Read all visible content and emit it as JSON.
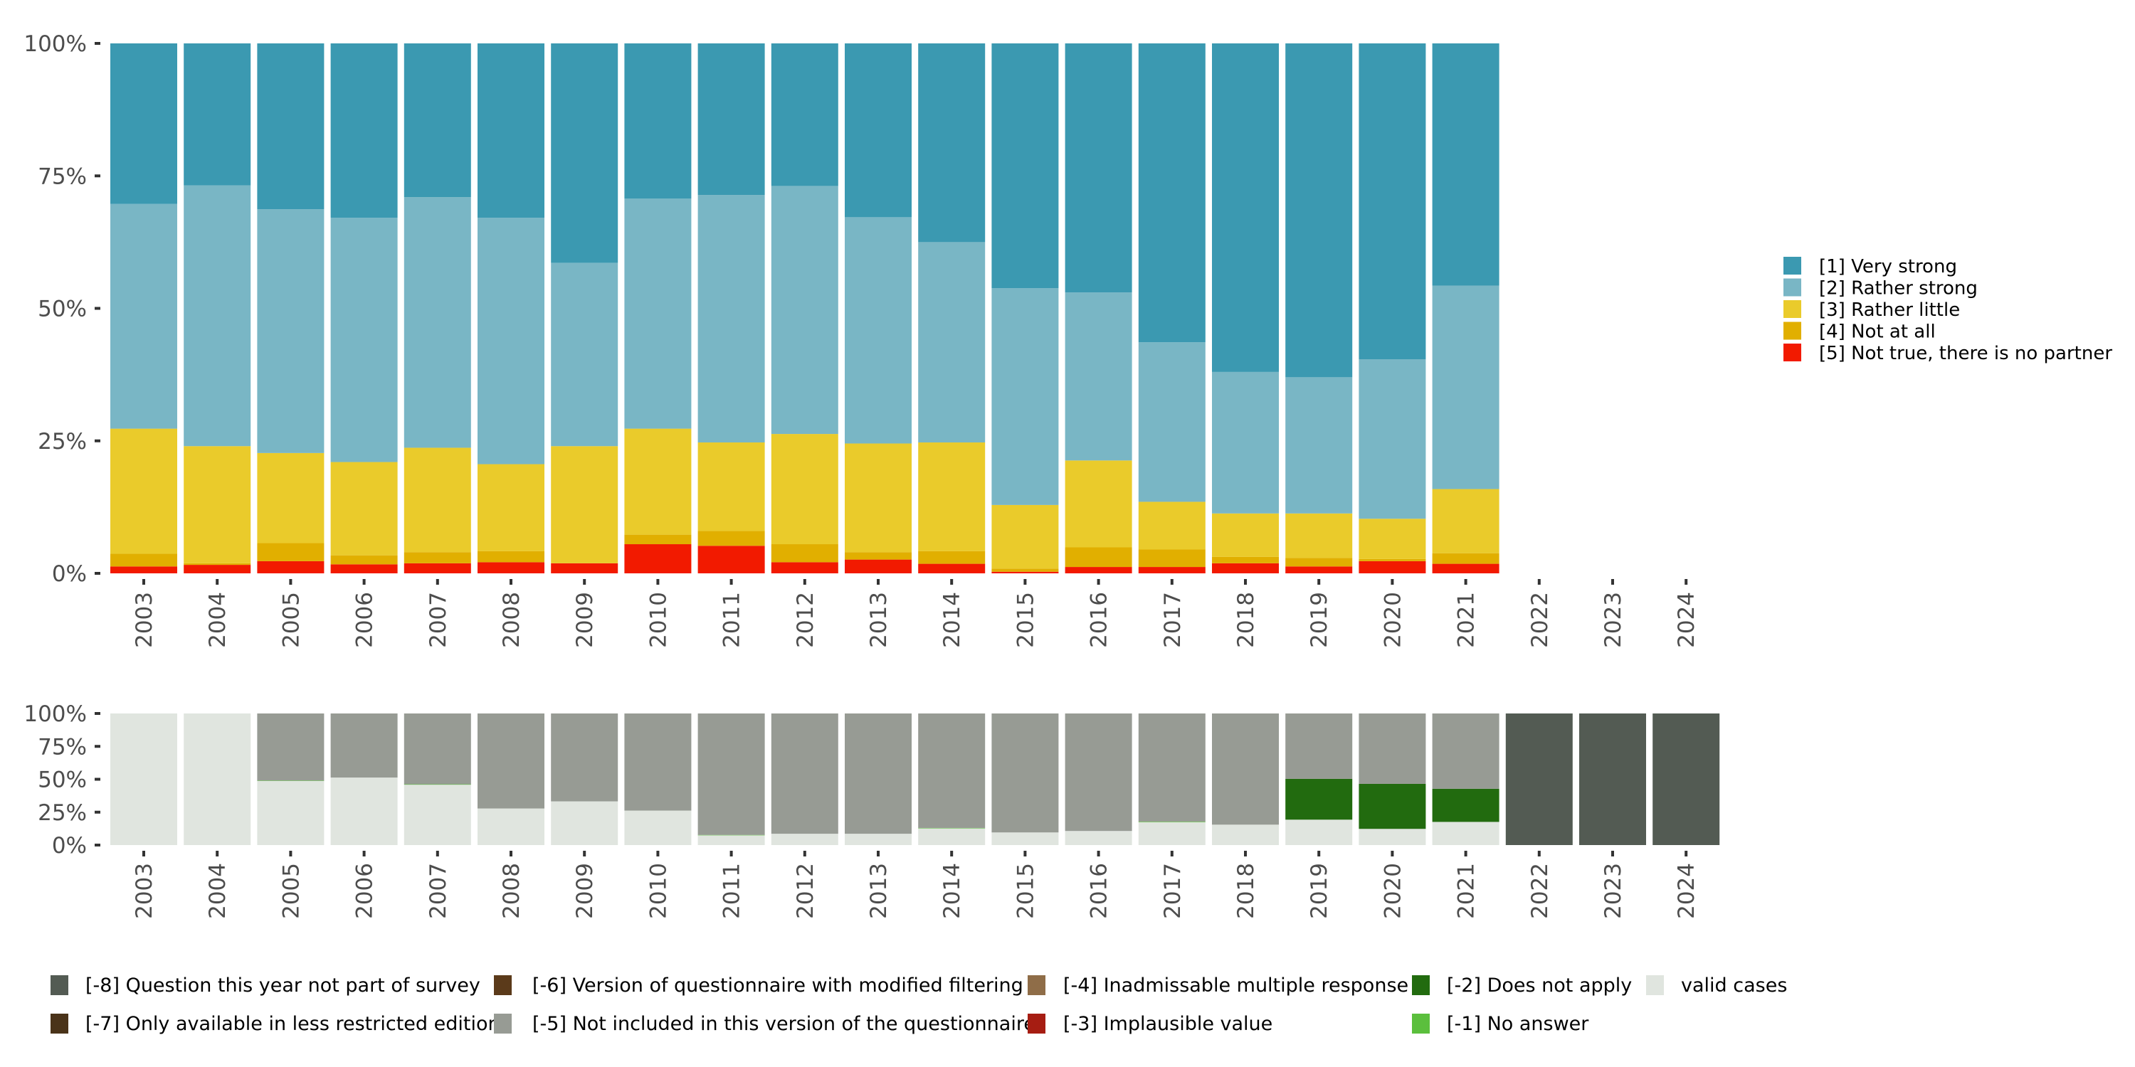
{
  "chart_data": [
    {
      "type": "bar",
      "stacked": true,
      "title": "",
      "xlabel": "",
      "ylabel": "",
      "ylim": [
        0,
        100
      ],
      "yticks": [
        "0%",
        "25%",
        "50%",
        "75%",
        "100%"
      ],
      "categories": [
        "2003",
        "2004",
        "2005",
        "2006",
        "2007",
        "2008",
        "2009",
        "2010",
        "2011",
        "2012",
        "2013",
        "2014",
        "2015",
        "2016",
        "2017",
        "2018",
        "2019",
        "2020",
        "2021",
        "2022",
        "2023",
        "2024"
      ],
      "legend_position": "right",
      "series": [
        {
          "name": "[5] Not true, there is no partner",
          "color": "#F21A00",
          "values": [
            1.3,
            1.6,
            2.3,
            1.7,
            1.9,
            2.1,
            1.9,
            5.5,
            5.2,
            2.1,
            2.6,
            1.8,
            0.3,
            1.2,
            1.2,
            1.9,
            1.3,
            2.3,
            1.8,
            0,
            0,
            0
          ]
        },
        {
          "name": "[4] Not at all",
          "color": "#E1AF00",
          "values": [
            2.4,
            0.3,
            3.4,
            1.7,
            2.1,
            2.1,
            0.0,
            1.8,
            2.8,
            3.4,
            1.4,
            2.4,
            0.6,
            3.7,
            3.3,
            1.2,
            1.6,
            0.4,
            2.0,
            0,
            0,
            0
          ]
        },
        {
          "name": "[3] Rather little",
          "color": "#EACB2B",
          "values": [
            23.6,
            22.1,
            17.0,
            17.6,
            19.7,
            16.4,
            22.1,
            20.0,
            16.7,
            20.8,
            20.5,
            20.5,
            12.0,
            16.4,
            9.0,
            8.2,
            8.4,
            7.6,
            12.1,
            0,
            0,
            0
          ]
        },
        {
          "name": "[2] Rather strong",
          "color": "#79B6C5",
          "values": [
            42.4,
            49.2,
            46.0,
            46.1,
            47.3,
            46.5,
            34.6,
            43.4,
            46.7,
            46.8,
            42.7,
            37.8,
            40.9,
            31.7,
            30.1,
            26.7,
            25.7,
            30.1,
            38.4,
            0,
            0,
            0
          ]
        },
        {
          "name": "[1] Very strong",
          "color": "#3B99B1",
          "values": [
            30.3,
            26.8,
            31.3,
            32.9,
            29.0,
            32.9,
            41.4,
            29.3,
            28.6,
            26.9,
            32.8,
            37.5,
            46.2,
            47.0,
            56.4,
            62.0,
            63.0,
            59.6,
            45.7,
            0,
            0,
            0
          ]
        }
      ],
      "legend_order": [
        4,
        3,
        2,
        1,
        0
      ]
    },
    {
      "type": "bar",
      "stacked": true,
      "title": "",
      "xlabel": "",
      "ylabel": "",
      "ylim": [
        0,
        100
      ],
      "yticks": [
        "0%",
        "25%",
        "50%",
        "75%",
        "100%"
      ],
      "categories": [
        "2003",
        "2004",
        "2005",
        "2006",
        "2007",
        "2008",
        "2009",
        "2010",
        "2011",
        "2012",
        "2013",
        "2014",
        "2015",
        "2016",
        "2017",
        "2018",
        "2019",
        "2020",
        "2021",
        "2022",
        "2023",
        "2024"
      ],
      "legend_position": "bottom",
      "series": [
        {
          "name": "valid cases",
          "color": "#E0E5DF",
          "values": [
            100,
            100,
            48.7,
            51.3,
            46.0,
            27.8,
            33.2,
            26.2,
            7.4,
            8.6,
            8.6,
            12.7,
            9.6,
            10.7,
            17.4,
            15.5,
            19.3,
            12.3,
            17.6,
            0,
            0,
            0
          ]
        },
        {
          "name": "[-1] No answer",
          "color": "#5BBF3D",
          "values": [
            0,
            0,
            0.3,
            0,
            0.2,
            0,
            0,
            0,
            0.3,
            0,
            0,
            0.3,
            0,
            0,
            0.4,
            0,
            0,
            0,
            0,
            0,
            0,
            0
          ]
        },
        {
          "name": "[-2] Does not apply",
          "color": "#226B0F",
          "values": [
            0,
            0,
            0,
            0,
            0,
            0,
            0,
            0,
            0,
            0,
            0,
            0,
            0,
            0,
            0,
            0,
            31.0,
            34.2,
            25.2,
            0,
            0,
            0
          ]
        },
        {
          "name": "[-5] Not included in this version of the questionnaire",
          "color": "#979B94",
          "values": [
            0,
            0,
            51.0,
            48.7,
            53.8,
            72.2,
            66.8,
            73.8,
            92.3,
            91.4,
            91.4,
            87.0,
            90.4,
            89.3,
            82.2,
            84.5,
            49.7,
            53.5,
            57.2,
            0,
            0,
            0
          ]
        },
        {
          "name": "[-8] Question this year not part of survey",
          "color": "#535B53",
          "values": [
            0,
            0,
            0,
            0,
            0,
            0,
            0,
            0,
            0,
            0,
            0,
            0,
            0,
            0,
            0,
            0,
            0,
            0,
            0,
            100,
            100,
            100
          ]
        }
      ],
      "legend_items": [
        {
          "name": "[-8] Question this year not part of survey",
          "color": "#535B53"
        },
        {
          "name": "[-7] Only available in less restricted edition",
          "color": "#4A3319"
        },
        {
          "name": "[-6] Version of questionnaire with modified filtering",
          "color": "#5B3A1A"
        },
        {
          "name": "[-5] Not included in this version of the questionnaire",
          "color": "#979B94"
        },
        {
          "name": "[-4] Inadmissable multiple response",
          "color": "#8F6D48"
        },
        {
          "name": "[-3] Implausible value",
          "color": "#A61D12"
        },
        {
          "name": "[-2] Does not apply",
          "color": "#226B0F"
        },
        {
          "name": "[-1] No answer",
          "color": "#5BBF3D"
        },
        {
          "name": " valid cases",
          "color": "#E0E5DF"
        }
      ]
    }
  ]
}
